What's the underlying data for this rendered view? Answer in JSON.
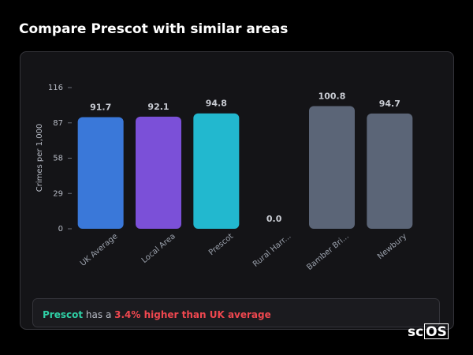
{
  "header": {
    "title": "Compare Prescot with similar areas"
  },
  "chart_data": {
    "type": "bar",
    "y_label": "Crimes per 1,000",
    "categories": [
      "UK Average",
      "Local Area",
      "Prescot",
      "Rural Harr...",
      "Bamber Bri...",
      "Newbury"
    ],
    "values": [
      91.7,
      92.1,
      94.8,
      0,
      100.8,
      94.7
    ],
    "value_labels": [
      "91.7",
      "92.1",
      "94.8",
      "0.0",
      "100.8",
      "94.7"
    ],
    "colors": [
      "#3a78d9",
      "#7b50d8",
      "#22b8cf",
      "#5b6577",
      "#5b6577",
      "#5b6577"
    ],
    "ylim": [
      0,
      116
    ],
    "yticks": [
      0,
      29,
      58,
      87,
      116
    ],
    "grid": false
  },
  "summary": {
    "area": "Prescot",
    "middle": "has a",
    "comparison": "3.4% higher than UK average"
  },
  "logo": {
    "left": "sc",
    "right": "OS"
  }
}
